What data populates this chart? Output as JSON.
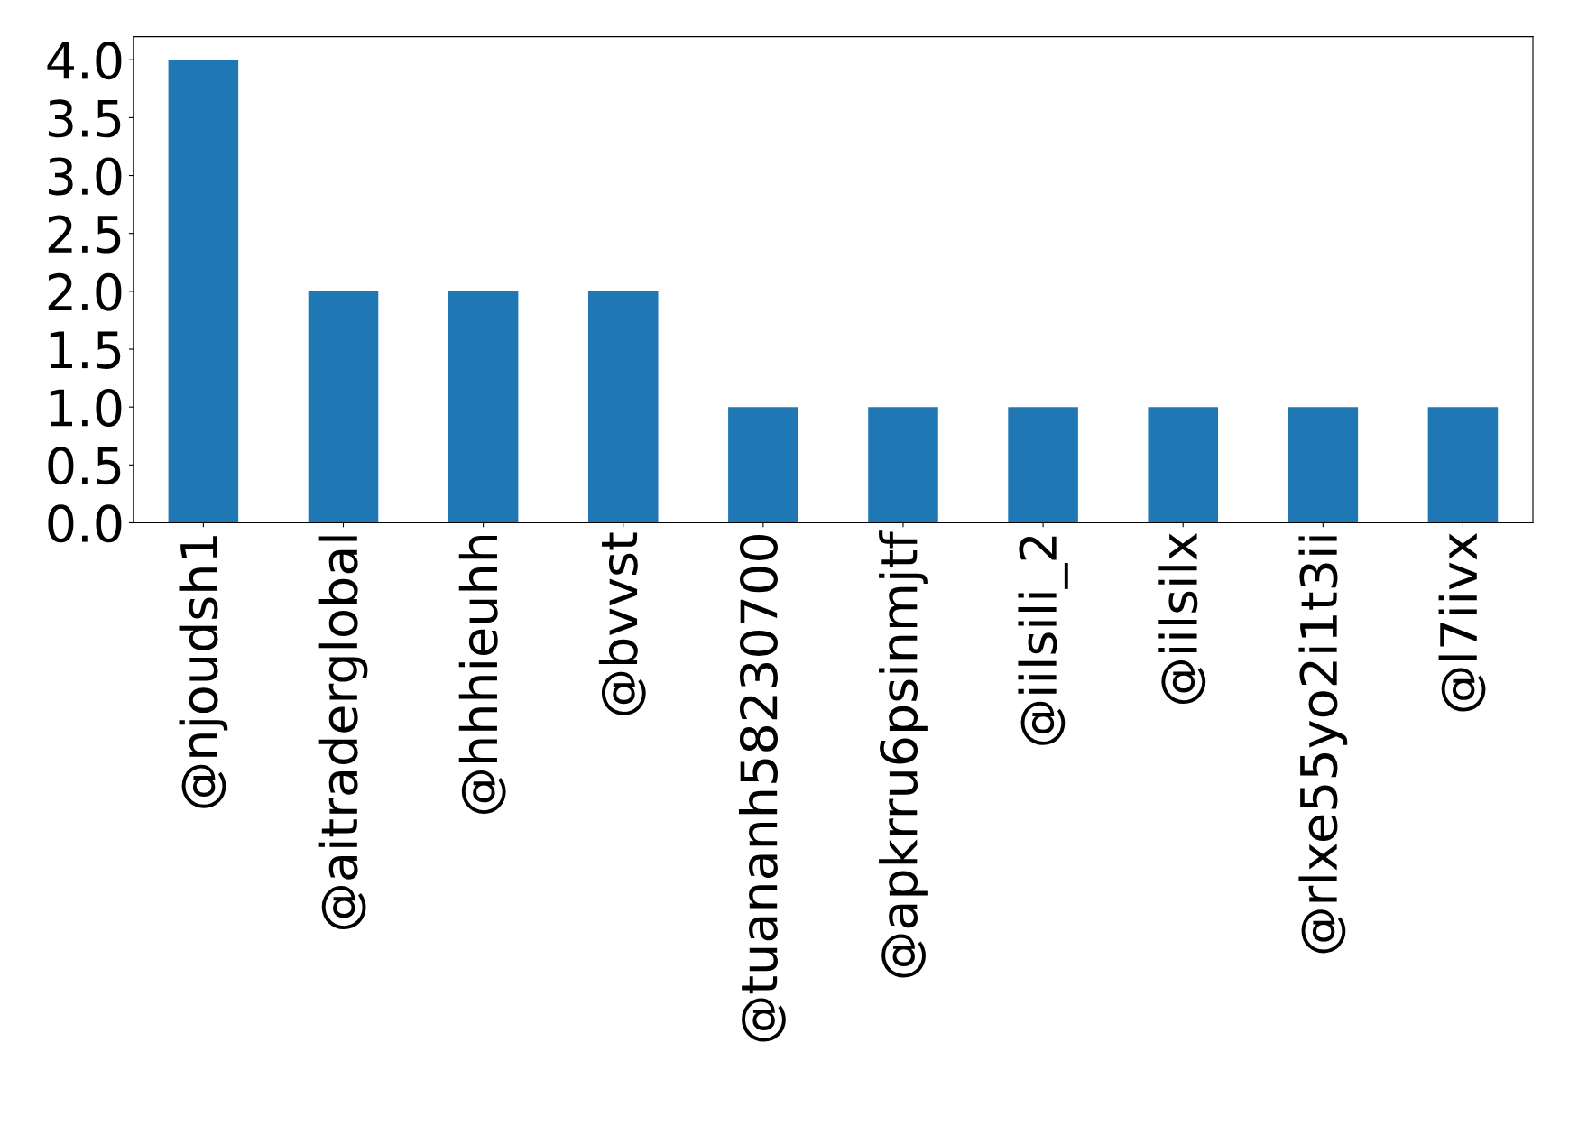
{
  "chart_data": {
    "type": "bar",
    "categories": [
      "@njoudsh1",
      "@aitraderglobal",
      "@hhhieuhh",
      "@bvvst",
      "@tuananh58230700",
      "@apkrru6psinmjtf",
      "@iilsili_2",
      "@iilsilx",
      "@rlxe55yo2i1t3ii",
      "@l7iivx"
    ],
    "values": [
      4,
      2,
      2,
      2,
      1,
      1,
      1,
      1,
      1,
      1
    ],
    "color": "#1f77b4",
    "ylim": [
      0,
      4.2
    ],
    "yticks": [
      {
        "value": 0,
        "label": "0.0"
      },
      {
        "value": 0.5,
        "label": "0.5"
      },
      {
        "value": 1,
        "label": "1.0"
      },
      {
        "value": 1.5,
        "label": "1.5"
      },
      {
        "value": 2,
        "label": "2.0"
      },
      {
        "value": 2.5,
        "label": "2.5"
      },
      {
        "value": 3,
        "label": "3.0"
      },
      {
        "value": 3.5,
        "label": "3.5"
      },
      {
        "value": 4,
        "label": "4.0"
      }
    ],
    "grid": false,
    "legend": false
  }
}
